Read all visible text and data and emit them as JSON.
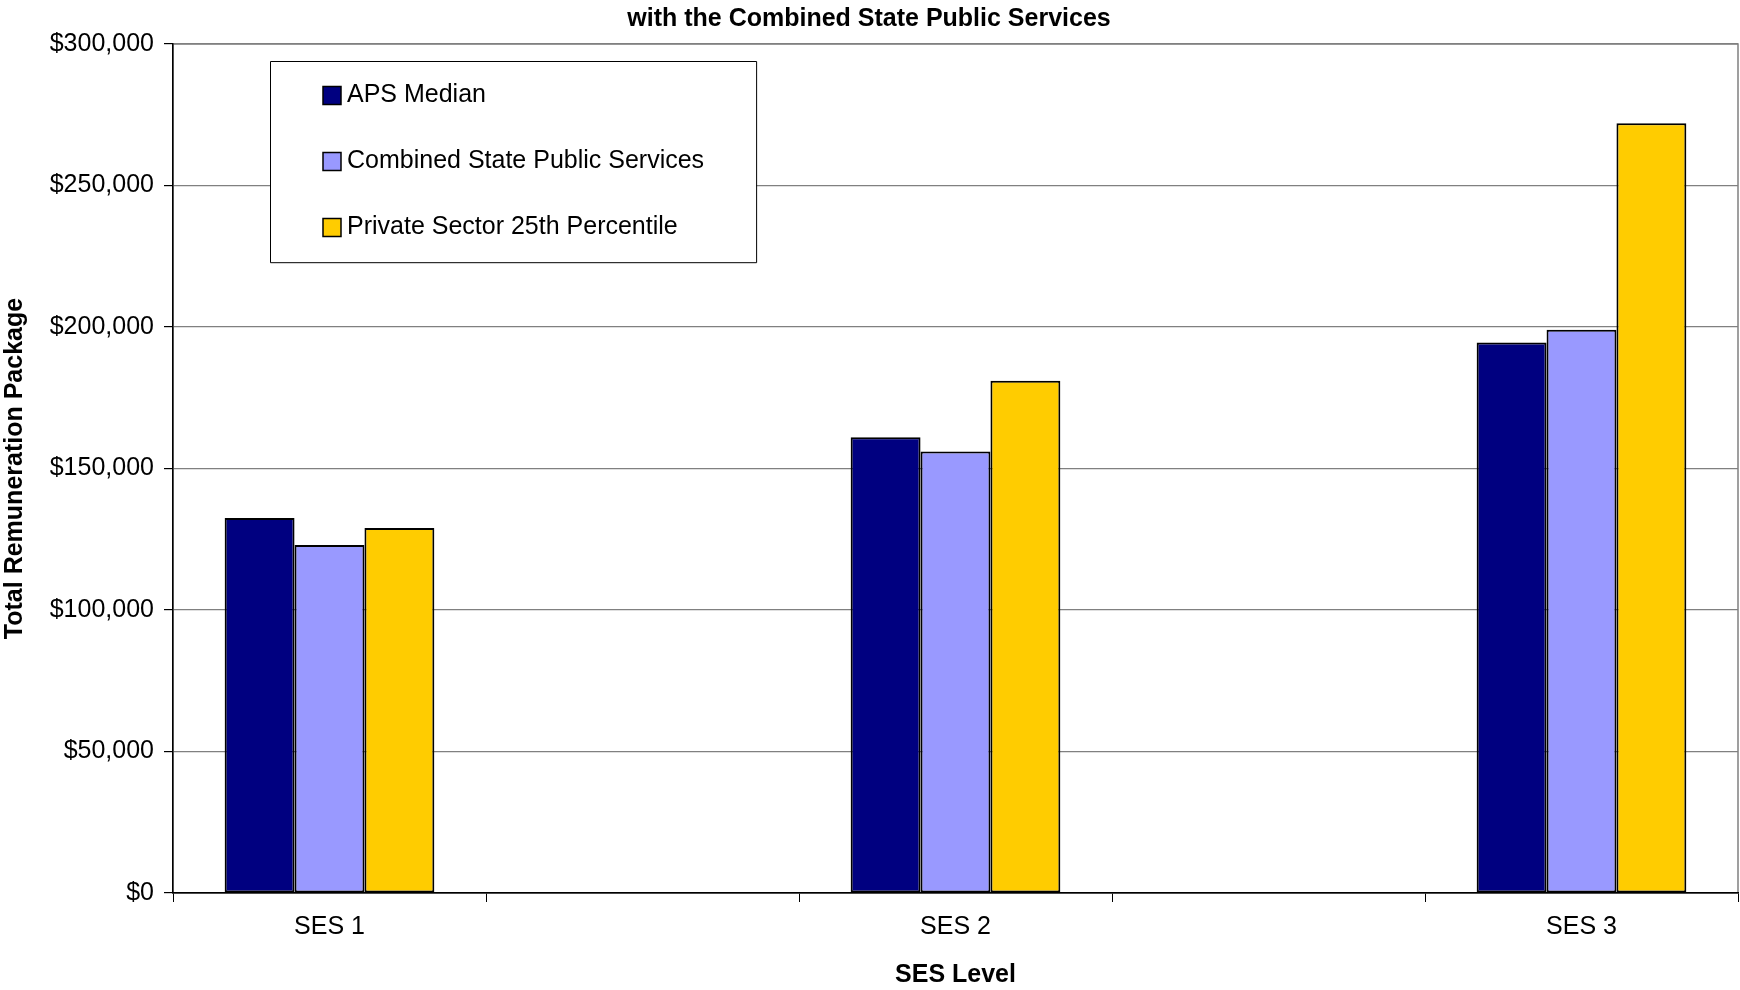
{
  "chart_data": {
    "type": "bar",
    "title": "with the Combined State Public Services",
    "xlabel": "SES Level",
    "ylabel": "Total Remuneration Package",
    "categories": [
      "SES 1",
      null,
      "SES 2",
      null,
      "SES 3"
    ],
    "series": [
      {
        "name": "APS Median",
        "color": "#000080",
        "values": [
          132500,
          null,
          161000,
          null,
          194500
        ]
      },
      {
        "name": "Combined State Public Services",
        "color": "#9999ff",
        "values": [
          123000,
          null,
          156000,
          null,
          199000
        ]
      },
      {
        "name": "Private Sector 25th Percentile",
        "color": "#ffcc00",
        "values": [
          129000,
          null,
          181000,
          null,
          272000
        ]
      }
    ],
    "ylim": [
      0,
      300000
    ],
    "yticks": [
      {
        "value": 0,
        "label": "$0"
      },
      {
        "value": 50000,
        "label": "$50,000"
      },
      {
        "value": 100000,
        "label": "$100,000"
      },
      {
        "value": 150000,
        "label": "$150,000"
      },
      {
        "value": 200000,
        "label": "$200,000"
      },
      {
        "value": 250000,
        "label": "$250,000"
      },
      {
        "value": 300000,
        "label": "$300,000"
      }
    ],
    "grid": "y",
    "legend": "top left"
  }
}
